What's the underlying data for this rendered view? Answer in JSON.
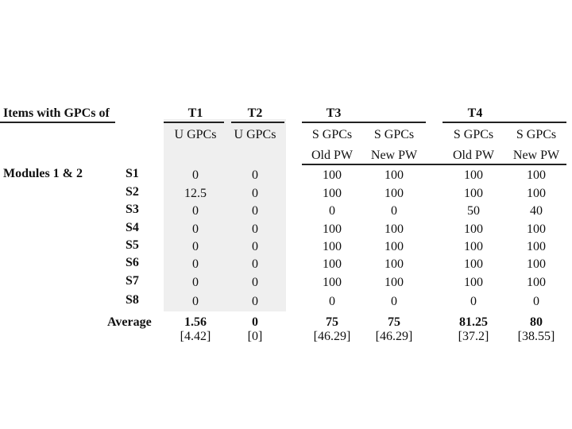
{
  "header": {
    "row_label": "Items with GPCs of",
    "groups": [
      "T1",
      "T2",
      "T3",
      "T4"
    ],
    "sub_line1": [
      "U GPCs",
      "U GPCs",
      "S GPCs",
      "S GPCs",
      "S GPCs",
      "S GPCs"
    ],
    "sub_line2": [
      "",
      "",
      "Old PW",
      "New PW",
      "Old PW",
      "New PW"
    ]
  },
  "section_label": "Modules 1 & 2",
  "rows": [
    {
      "label": "S1",
      "values": [
        "0",
        "0",
        "100",
        "100",
        "100",
        "100"
      ]
    },
    {
      "label": "S2",
      "values": [
        "12.5",
        "0",
        "100",
        "100",
        "100",
        "100"
      ]
    },
    {
      "label": "S3",
      "values": [
        "0",
        "0",
        "0",
        "0",
        "50",
        "40"
      ]
    },
    {
      "label": "S4",
      "values": [
        "0",
        "0",
        "100",
        "100",
        "100",
        "100"
      ]
    },
    {
      "label": "S5",
      "values": [
        "0",
        "0",
        "100",
        "100",
        "100",
        "100"
      ]
    },
    {
      "label": "S6",
      "values": [
        "0",
        "0",
        "100",
        "100",
        "100",
        "100"
      ]
    },
    {
      "label": "S7",
      "values": [
        "0",
        "0",
        "100",
        "100",
        "100",
        "100"
      ]
    },
    {
      "label": "S8",
      "values": [
        "0",
        "0",
        "0",
        "0",
        "0",
        "0"
      ]
    }
  ],
  "average": {
    "label": "Average",
    "values": [
      "1.56",
      "0",
      "75",
      "75",
      "81.25",
      "80"
    ],
    "sd": [
      "[4.42]",
      "[0]",
      "[46.29]",
      "[46.29]",
      "[37.2]",
      "[38.55]"
    ]
  }
}
